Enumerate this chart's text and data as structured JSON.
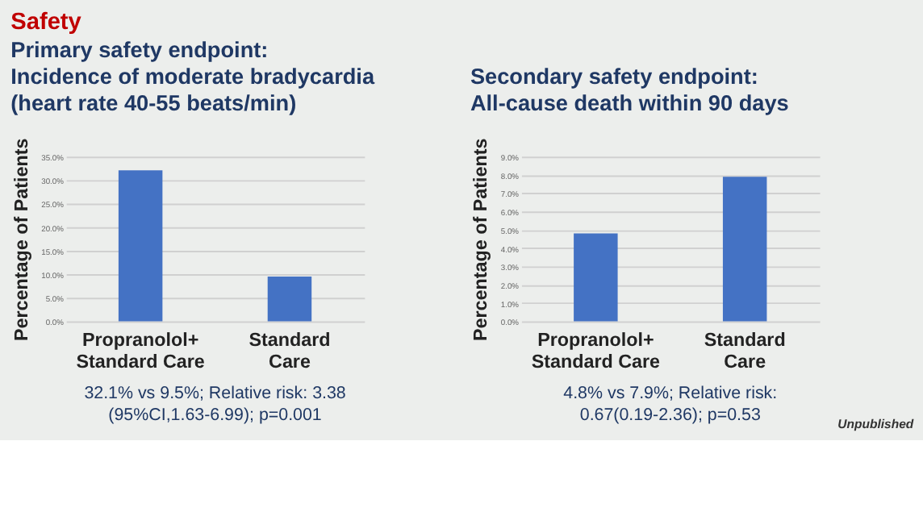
{
  "chart_data": [
    {
      "type": "bar",
      "title": "Primary safety endpoint:\nIncidence of moderate bradycardia\n(heart rate 40-55 beats/min)",
      "ylabel": "Percentage of Patients",
      "categories": [
        "Propranolol+\nStandard Care",
        "Standard\nCare"
      ],
      "values": [
        32.1,
        9.5
      ],
      "color": "#4472c4",
      "ylim": [
        0,
        35
      ],
      "yticks": [
        {
          "value": 0,
          "label": "0.0%"
        },
        {
          "value": 5,
          "label": "5.0%"
        },
        {
          "value": 10,
          "label": "10.0%"
        },
        {
          "value": 15,
          "label": "15.0%"
        },
        {
          "value": 20,
          "label": "20.0%"
        },
        {
          "value": 25,
          "label": "25.0%"
        },
        {
          "value": 30,
          "label": "30.0%"
        },
        {
          "value": 35,
          "label": "35.0%"
        }
      ],
      "grid": "y",
      "annotations": [
        "Safety",
        "32.1% vs 9.5%; Relative risk: 3.38\n(95%CI,1.63-6.99); p=0.001"
      ]
    },
    {
      "type": "bar",
      "title": "Secondary safety endpoint:\nAll-cause death within 90 days",
      "ylabel": "Percentage of Patients",
      "categories": [
        "Propranolol+\nStandard Care",
        "Standard\nCare"
      ],
      "values": [
        4.8,
        7.9
      ],
      "color": "#4472c4",
      "ylim": [
        0,
        9
      ],
      "yticks": [
        {
          "value": 0,
          "label": "0.0%"
        },
        {
          "value": 1,
          "label": "1.0%"
        },
        {
          "value": 2,
          "label": "2.0%"
        },
        {
          "value": 3,
          "label": "3.0%"
        },
        {
          "value": 4,
          "label": "4.0%"
        },
        {
          "value": 5,
          "label": "5.0%"
        },
        {
          "value": 6,
          "label": "6.0%"
        },
        {
          "value": 7,
          "label": "7.0%"
        },
        {
          "value": 8,
          "label": "8.0%"
        },
        {
          "value": 9,
          "label": "9.0%"
        }
      ],
      "grid": "y",
      "annotations": [
        "4.8% vs 7.9%; Relative risk:\n0.67(0.19-2.36); p=0.53",
        "Unpublished"
      ]
    }
  ]
}
